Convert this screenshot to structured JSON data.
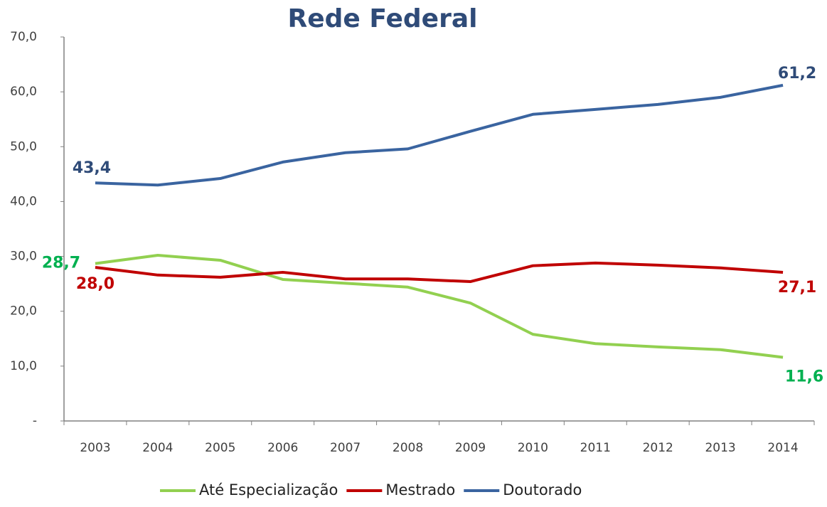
{
  "chart_data": {
    "type": "line",
    "title": "Rede Federal",
    "categories": [
      "2003",
      "2004",
      "2005",
      "2006",
      "2007",
      "2008",
      "2009",
      "2010",
      "2011",
      "2012",
      "2013",
      "2014"
    ],
    "series": [
      {
        "name": "Até Especialização",
        "color": "#92d050",
        "label_color": "#00b050",
        "values": [
          28.7,
          30.2,
          29.3,
          25.8,
          25.1,
          24.4,
          21.5,
          15.8,
          14.1,
          13.5,
          13.0,
          11.6
        ],
        "value_labels": [
          "28,7",
          null,
          null,
          null,
          null,
          null,
          null,
          null,
          null,
          null,
          null,
          "11,6"
        ]
      },
      {
        "name": "Mestrado",
        "color": "#c00000",
        "label_color": "#c00000",
        "values": [
          28.0,
          26.6,
          26.2,
          27.1,
          25.9,
          25.9,
          25.4,
          28.3,
          28.8,
          28.4,
          27.9,
          27.1
        ],
        "value_labels": [
          "28,0",
          null,
          null,
          null,
          null,
          null,
          null,
          null,
          null,
          null,
          null,
          "27,1"
        ]
      },
      {
        "name": "Doutorado",
        "color": "#3a64a0",
        "label_color": "#2f4b78",
        "values": [
          43.4,
          43.0,
          44.2,
          47.2,
          48.9,
          49.6,
          52.8,
          55.9,
          56.8,
          57.7,
          59.0,
          61.2
        ],
        "value_labels": [
          "43,4",
          null,
          null,
          null,
          null,
          null,
          null,
          null,
          null,
          null,
          null,
          "61,2"
        ]
      }
    ],
    "ylim": [
      0,
      70
    ],
    "yticks": [
      {
        "value": 0,
        "label": "-"
      },
      {
        "value": 10,
        "label": "10,0"
      },
      {
        "value": 20,
        "label": "20,0"
      },
      {
        "value": 30,
        "label": "30,0"
      },
      {
        "value": 40,
        "label": "40,0"
      },
      {
        "value": 50,
        "label": "50,0"
      },
      {
        "value": 60,
        "label": "60,0"
      },
      {
        "value": 70,
        "label": "70,0"
      }
    ],
    "grid": false,
    "legend": "bottom"
  }
}
